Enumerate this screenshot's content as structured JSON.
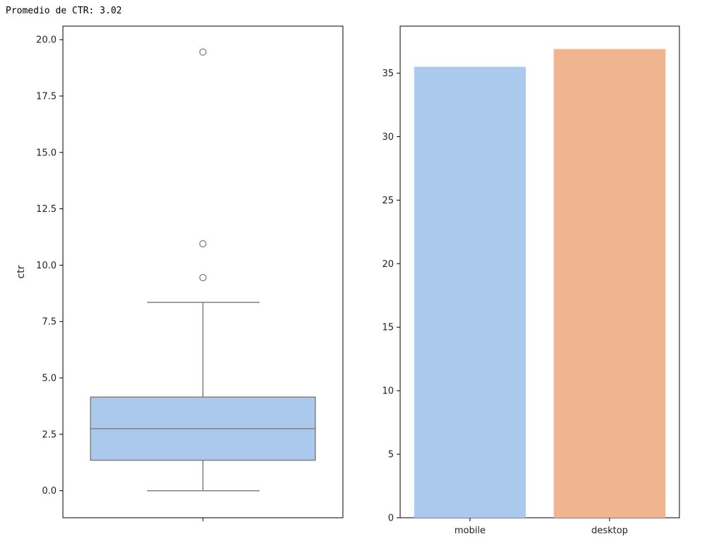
{
  "output": {
    "text": "Promedio de CTR: 3.02"
  },
  "chart_data": [
    {
      "type": "box",
      "ylabel": "ctr",
      "xlabel": "",
      "ylim": [
        -1.2,
        20.6
      ],
      "yticks": [
        0.0,
        2.5,
        5.0,
        7.5,
        10.0,
        12.5,
        15.0,
        17.5,
        20.0
      ],
      "ytick_labels": [
        "0.0",
        "2.5",
        "5.0",
        "7.5",
        "10.0",
        "12.5",
        "15.0",
        "17.5",
        "20.0"
      ],
      "box": {
        "whisker_low": 0.0,
        "q1": 1.35,
        "median": 2.75,
        "q3": 4.15,
        "whisker_high": 8.35
      },
      "outliers": [
        9.45,
        10.95,
        19.45
      ],
      "color": "#abc9ed",
      "line_color": "#808080"
    },
    {
      "type": "bar",
      "categories": [
        "mobile",
        "desktop"
      ],
      "values": [
        35.5,
        36.9
      ],
      "colors": [
        "#abc9ed",
        "#f0b590"
      ],
      "ylim": [
        0,
        38.7
      ],
      "yticks": [
        0,
        5,
        10,
        15,
        20,
        25,
        30,
        35
      ],
      "ytick_labels": [
        "0",
        "5",
        "10",
        "15",
        "20",
        "25",
        "30",
        "35"
      ],
      "xlabel": "",
      "ylabel": ""
    }
  ]
}
